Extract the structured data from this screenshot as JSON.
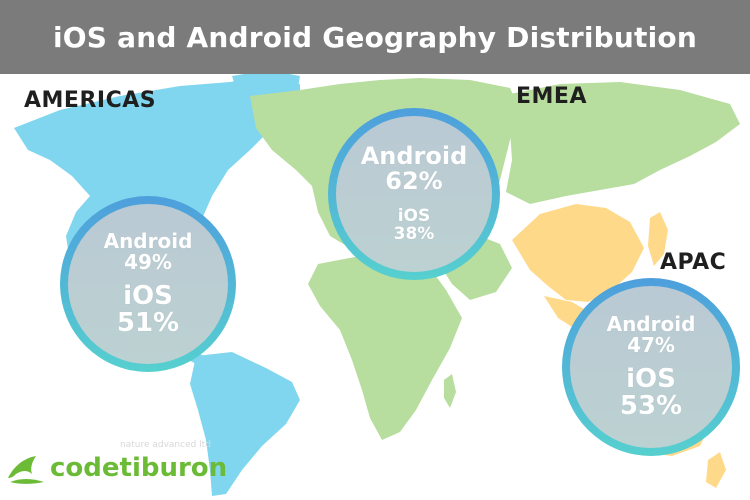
{
  "title": "iOS and Android Geography Distribution",
  "colors": {
    "americas": "#7fd6ee",
    "emea": "#b7dd9f",
    "apac": "#ffd98a",
    "title_bar": "#7b7b7b",
    "ring_top": "#4e9fdc",
    "ring_bottom": "#56d0cf",
    "brand": "#6cbb36"
  },
  "regions": {
    "americas": {
      "label": "AMERICAS",
      "android_label": "Android",
      "android_share": "49%",
      "ios_label": "iOS",
      "ios_share": "51%"
    },
    "emea": {
      "label": "EMEA",
      "android_label": "Android",
      "android_share": "62%",
      "ios_label": "iOS",
      "ios_share": "38%"
    },
    "apac": {
      "label": "APAC",
      "android_label": "Android",
      "android_share": "47%",
      "ios_label": "iOS",
      "ios_share": "53%"
    }
  },
  "brand": {
    "name": "codetiburon",
    "logo_icon": "shark-icon"
  },
  "watermark": "nature advanced ltd"
}
